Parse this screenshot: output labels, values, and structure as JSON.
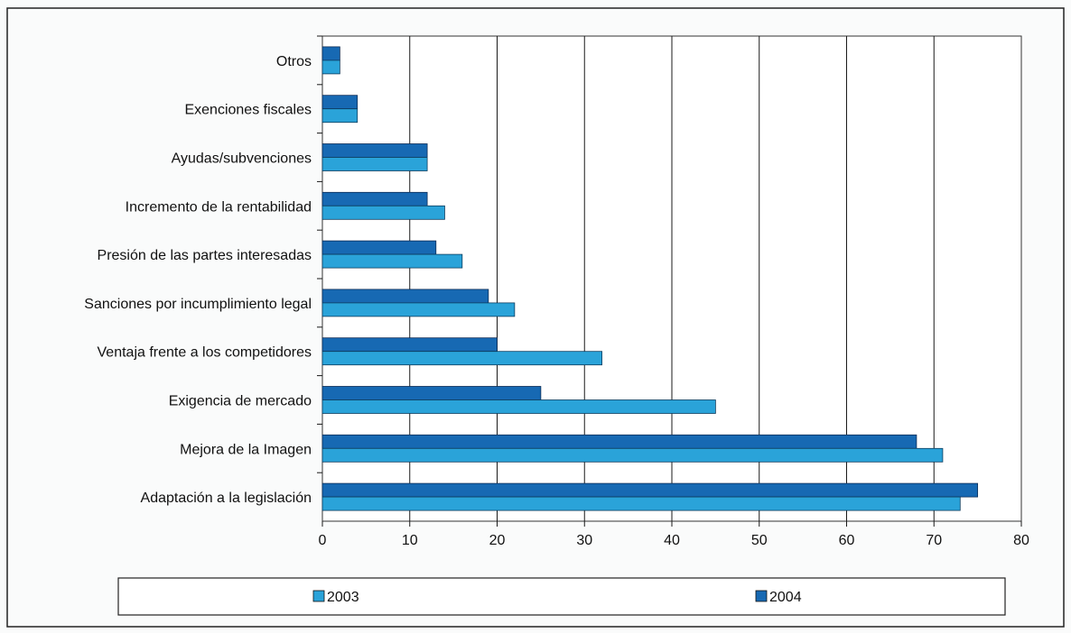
{
  "chart_data": {
    "type": "bar",
    "orientation": "horizontal",
    "categories": [
      "Otros",
      "Exenciones fiscales",
      "Ayudas/subvenciones",
      "Incremento de la rentabilidad",
      "Presión de las partes interesadas",
      "Sanciones por incumplimiento legal",
      "Ventaja frente a los competidores",
      "Exigencia de mercado",
      "Mejora de la Imagen",
      "Adaptación a la legislación"
    ],
    "series": [
      {
        "name": "2003",
        "color": "#2aa3d9",
        "values": [
          2,
          4,
          12,
          14,
          16,
          22,
          32,
          45,
          71,
          73
        ]
      },
      {
        "name": "2004",
        "color": "#1769b3",
        "values": [
          2,
          4,
          12,
          12,
          13,
          19,
          20,
          25,
          68,
          75
        ]
      }
    ],
    "xlim": [
      0,
      80
    ],
    "xticks": [
      "0",
      "10",
      "20",
      "30",
      "40",
      "50",
      "60",
      "70",
      "80"
    ],
    "grid": true,
    "legend_position": "bottom"
  }
}
